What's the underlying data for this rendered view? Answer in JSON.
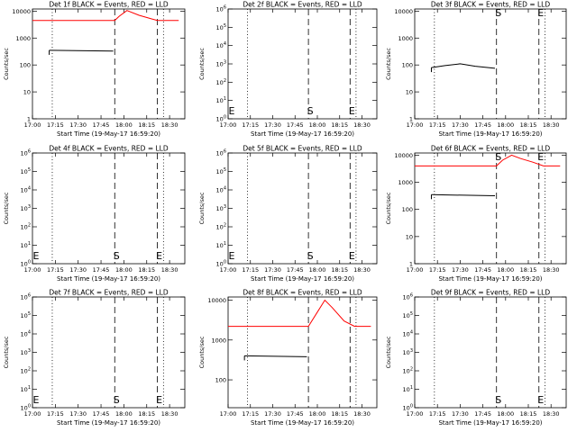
{
  "x_tick_labels": [
    "17:00",
    "17:15",
    "17:30",
    "17:45",
    "18:00",
    "18:15",
    "18:30"
  ],
  "xlabel": "Start Time (19-May-17 16:59:20)",
  "ylabel": "Counts/sec",
  "colors": {
    "events": "#000000",
    "lld": "#ff0000",
    "axes": "#000000"
  },
  "chart_data": [
    {
      "type": "line",
      "title": "Det 1f BLACK = Events, RED = LLD",
      "yscale": "log",
      "y_tick_labels": [
        "1",
        "10",
        "100",
        "1000",
        "10000"
      ],
      "ylim": [
        1,
        12000
      ],
      "xlim": [
        "17:00",
        "18:40"
      ],
      "dotted_x": [
        "17:13",
        "18:26"
      ],
      "dashed_x": [
        "17:54",
        "18:22"
      ],
      "markers": [],
      "series": [
        {
          "kind": "events",
          "x": [
            "17:11",
            "17:53"
          ],
          "y": [
            350,
            330
          ]
        },
        {
          "kind": "lld",
          "x": [
            "17:00",
            "17:54",
            "17:57",
            "18:02",
            "18:10",
            "18:18",
            "18:22",
            "18:30",
            "18:36"
          ],
          "y": [
            4500,
            4500,
            6500,
            10500,
            7000,
            5200,
            4500,
            4500,
            4500
          ]
        }
      ]
    },
    {
      "type": "line",
      "title": "Det 2f BLACK = Events, RED = LLD",
      "yscale": "log",
      "y_tick_labels": [
        "10^0",
        "10^1",
        "10^2",
        "10^3",
        "10^4",
        "10^5",
        "10^6"
      ],
      "ylim": [
        1,
        1000000
      ],
      "xlim": [
        "17:00",
        "18:40"
      ],
      "dotted_x": [
        "17:13",
        "18:26"
      ],
      "dashed_x": [
        "17:54",
        "18:22"
      ],
      "markers": [
        {
          "label": "E",
          "x": "17:00"
        },
        {
          "label": "S",
          "x": "17:54"
        },
        {
          "label": "E",
          "x": "18:22"
        }
      ],
      "series": []
    },
    {
      "type": "line",
      "title": "Det 3f BLACK = Events, RED = LLD",
      "yscale": "log",
      "y_tick_labels": [
        "1",
        "10",
        "100",
        "1000",
        "10000"
      ],
      "ylim": [
        1,
        12000
      ],
      "xlim": [
        "17:00",
        "18:40"
      ],
      "dotted_x": [
        "17:13",
        "18:26"
      ],
      "dashed_x": [
        "17:54",
        "18:22"
      ],
      "markers": [
        {
          "label": "S",
          "x": "17:54"
        },
        {
          "label": "E",
          "x": "18:22"
        }
      ],
      "series": [
        {
          "kind": "events",
          "x": [
            "17:11",
            "17:20",
            "17:30",
            "17:40",
            "17:53"
          ],
          "y": [
            80,
            95,
            110,
            90,
            75
          ]
        }
      ]
    },
    {
      "type": "line",
      "title": "Det 4f BLACK = Events, RED = LLD",
      "yscale": "log",
      "y_tick_labels": [
        "10^0",
        "10^1",
        "10^2",
        "10^3",
        "10^4",
        "10^5",
        "10^6"
      ],
      "ylim": [
        1,
        1000000
      ],
      "xlim": [
        "17:00",
        "18:40"
      ],
      "dotted_x": [
        "17:13",
        "18:26"
      ],
      "dashed_x": [
        "17:54",
        "18:22"
      ],
      "markers": [
        {
          "label": "E",
          "x": "17:00"
        },
        {
          "label": "S",
          "x": "17:54"
        },
        {
          "label": "E",
          "x": "18:22"
        }
      ],
      "series": []
    },
    {
      "type": "line",
      "title": "Det 5f BLACK = Events, RED = LLD",
      "yscale": "log",
      "y_tick_labels": [
        "10^0",
        "10^1",
        "10^2",
        "10^3",
        "10^4",
        "10^5",
        "10^6"
      ],
      "ylim": [
        1,
        1000000
      ],
      "xlim": [
        "17:00",
        "18:40"
      ],
      "dotted_x": [
        "17:13",
        "18:26"
      ],
      "dashed_x": [
        "17:54",
        "18:22"
      ],
      "markers": [
        {
          "label": "E",
          "x": "17:00"
        },
        {
          "label": "S",
          "x": "17:54"
        },
        {
          "label": "E",
          "x": "18:22"
        }
      ],
      "series": []
    },
    {
      "type": "line",
      "title": "Det 6f BLACK = Events, RED = LLD",
      "yscale": "log",
      "y_tick_labels": [
        "1",
        "10",
        "100",
        "1000",
        "10000"
      ],
      "ylim": [
        1,
        12000
      ],
      "xlim": [
        "17:00",
        "18:40"
      ],
      "dotted_x": [
        "17:13",
        "18:26"
      ],
      "dashed_x": [
        "17:54",
        "18:22"
      ],
      "markers": [
        {
          "label": "S",
          "x": "17:54"
        },
        {
          "label": "E",
          "x": "18:22"
        }
      ],
      "series": [
        {
          "kind": "events",
          "x": [
            "17:11",
            "17:53"
          ],
          "y": [
            350,
            320
          ]
        },
        {
          "kind": "lld",
          "x": [
            "17:00",
            "17:54",
            "17:58",
            "18:04",
            "18:10",
            "18:18",
            "18:25",
            "18:36"
          ],
          "y": [
            4000,
            4000,
            6500,
            10000,
            7500,
            5500,
            4000,
            4000
          ]
        }
      ]
    },
    {
      "type": "line",
      "title": "Det 7f BLACK = Events, RED = LLD",
      "yscale": "log",
      "y_tick_labels": [
        "10^0",
        "10^1",
        "10^2",
        "10^3",
        "10^4",
        "10^5",
        "10^6"
      ],
      "ylim": [
        1,
        1000000
      ],
      "xlim": [
        "17:00",
        "18:40"
      ],
      "dotted_x": [
        "17:13",
        "18:26"
      ],
      "dashed_x": [
        "17:54",
        "18:22"
      ],
      "markers": [
        {
          "label": "E",
          "x": "17:00"
        },
        {
          "label": "S",
          "x": "17:54"
        },
        {
          "label": "E",
          "x": "18:22"
        }
      ],
      "series": []
    },
    {
      "type": "line",
      "title": "Det 8f BLACK = Events, RED = LLD",
      "yscale": "log",
      "y_tick_labels": [
        "100",
        "1000",
        "10000"
      ],
      "ylim": [
        20,
        12000
      ],
      "xlim": [
        "17:00",
        "18:40"
      ],
      "dotted_x": [
        "17:13",
        "18:26"
      ],
      "dashed_x": [
        "17:54",
        "18:22"
      ],
      "markers": [],
      "series": [
        {
          "kind": "events",
          "x": [
            "17:11",
            "17:53"
          ],
          "y": [
            400,
            380
          ]
        },
        {
          "kind": "lld",
          "x": [
            "17:00",
            "17:54",
            "18:00",
            "18:05",
            "18:10",
            "18:18",
            "18:25",
            "18:36"
          ],
          "y": [
            2200,
            2200,
            5000,
            10000,
            6500,
            3000,
            2200,
            2200
          ]
        }
      ]
    },
    {
      "type": "line",
      "title": "Det 9f BLACK = Events, RED = LLD",
      "yscale": "log",
      "y_tick_labels": [
        "10^0",
        "10^1",
        "10^2",
        "10^3",
        "10^4",
        "10^5",
        "10^6"
      ],
      "ylim": [
        1,
        1000000
      ],
      "xlim": [
        "17:00",
        "18:40"
      ],
      "dotted_x": [
        "17:13",
        "18:26"
      ],
      "dashed_x": [
        "17:54",
        "18:22"
      ],
      "markers": [
        {
          "label": "S",
          "x": "17:54"
        },
        {
          "label": "E",
          "x": "18:22"
        }
      ],
      "series": []
    }
  ]
}
